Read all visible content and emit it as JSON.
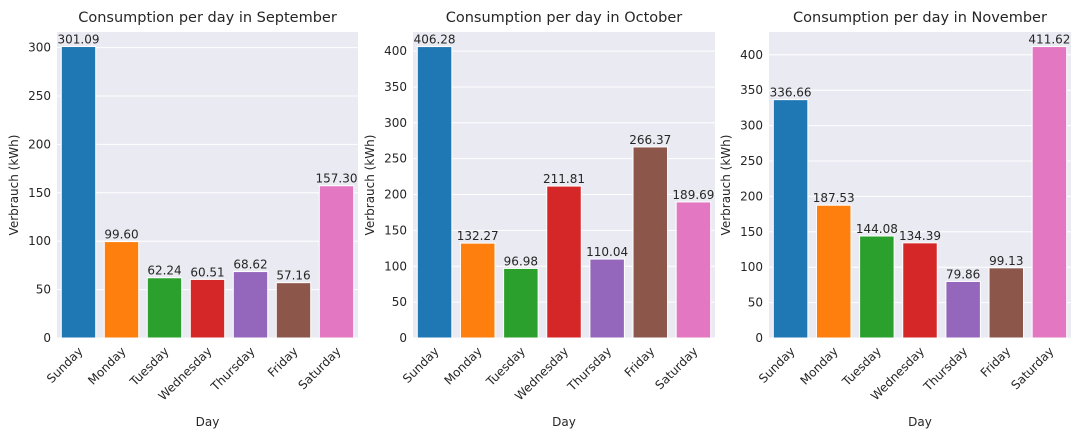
{
  "chart_data": [
    {
      "type": "bar",
      "title": "Consumption per day in September",
      "xlabel": "Day",
      "ylabel": "Verbrauch (kWh)",
      "categories": [
        "Sunday",
        "Monday",
        "Tuesday",
        "Wednesday",
        "Thursday",
        "Friday",
        "Saturday"
      ],
      "values": [
        301.09,
        99.6,
        62.24,
        60.51,
        68.62,
        57.16,
        157.3
      ],
      "value_labels": [
        "301.09",
        "99.60",
        "62.24",
        "60.51",
        "68.62",
        "57.16",
        "157.30"
      ],
      "ylim": [
        0,
        316.1
      ],
      "yticks": [
        0,
        50,
        100,
        150,
        200,
        250,
        300
      ],
      "grid": true
    },
    {
      "type": "bar",
      "title": "Consumption per day in October",
      "xlabel": "Day",
      "ylabel": "Verbrauch (kWh)",
      "categories": [
        "Sunday",
        "Monday",
        "Tuesday",
        "Wednesday",
        "Thursday",
        "Friday",
        "Saturday"
      ],
      "values": [
        406.28,
        132.27,
        96.98,
        211.81,
        110.04,
        266.37,
        189.69
      ],
      "value_labels": [
        "406.28",
        "132.27",
        "96.98",
        "211.81",
        "110.04",
        "266.37",
        "189.69"
      ],
      "ylim": [
        0,
        426.6
      ],
      "yticks": [
        0,
        50,
        100,
        150,
        200,
        250,
        300,
        350,
        400
      ],
      "grid": true
    },
    {
      "type": "bar",
      "title": "Consumption per day in November",
      "xlabel": "Day",
      "ylabel": "Verbrauch (kWh)",
      "categories": [
        "Sunday",
        "Monday",
        "Tuesday",
        "Wednesday",
        "Thursday",
        "Friday",
        "Saturday"
      ],
      "values": [
        336.66,
        187.53,
        144.08,
        134.39,
        79.86,
        99.13,
        411.62
      ],
      "value_labels": [
        "336.66",
        "187.53",
        "144.08",
        "134.39",
        "79.86",
        "99.13",
        "411.62"
      ],
      "ylim": [
        0,
        432.2
      ],
      "yticks": [
        0,
        50,
        100,
        150,
        200,
        250,
        300,
        350,
        400
      ],
      "grid": true
    }
  ],
  "colors": {
    "plot_background": "#eaeaf2",
    "grid": "#ffffff",
    "bars": [
      "#1f77b4",
      "#ff7f0e",
      "#2ca02c",
      "#d62728",
      "#9467bd",
      "#8c564b",
      "#e377c2"
    ]
  }
}
